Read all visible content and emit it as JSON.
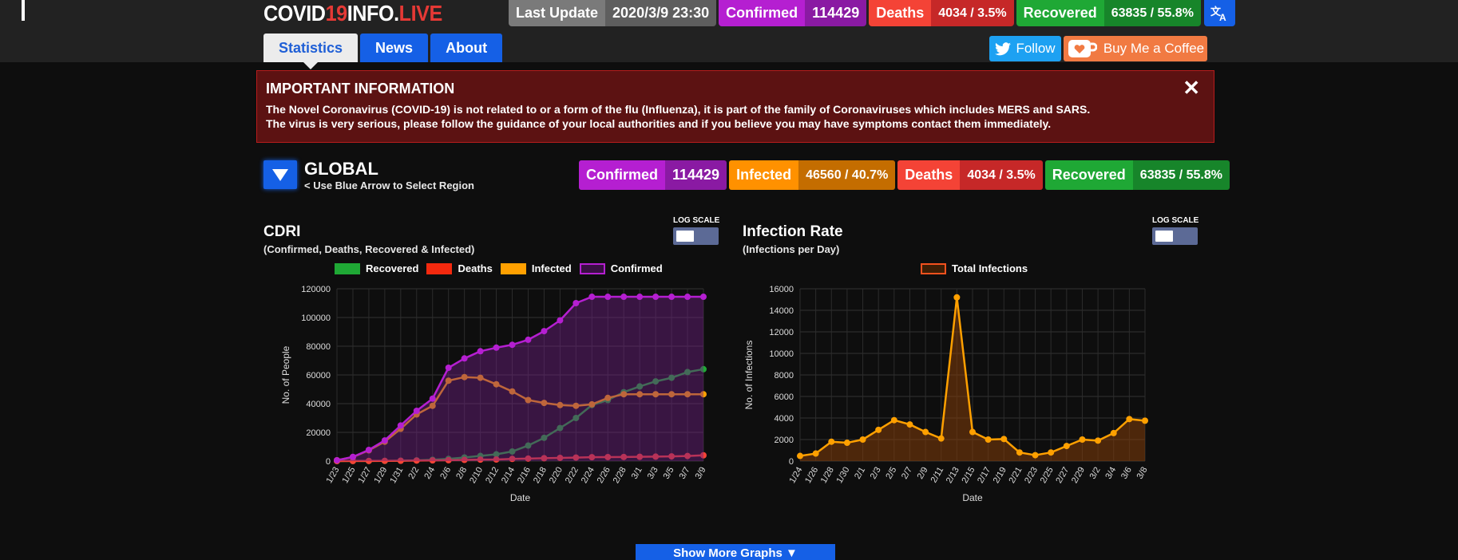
{
  "header": {
    "logo_part1": "COVID",
    "logo_part2": "19",
    "logo_part3": "INFO.",
    "logo_part4": "LIVE",
    "last_update_label": "Last Update",
    "last_update_value": "2020/3/9 23:30",
    "confirmed_label": "Confirmed",
    "confirmed_value": "114429",
    "deaths_label": "Deaths",
    "deaths_value": "4034 / 3.5%",
    "recovered_label": "Recovered",
    "recovered_value": "63835 / 55.8%",
    "translate_icon": "translate-icon"
  },
  "nav": {
    "tabs": [
      "Statistics",
      "News",
      "About"
    ],
    "follow_label": "Follow",
    "coffee_label": "Buy Me a Coffee"
  },
  "alert": {
    "title": "IMPORTANT INFORMATION",
    "line1": "The Novel Coronavirus (COVID-19) is not related to or a form of the flu (Influenza), it is part of the family of Coronaviruses which includes MERS and SARS.",
    "line2": "The virus is very serious, please follow the guidance of your local authorities and if you believe you may have symptoms contact them immediately.",
    "close": "✕"
  },
  "region": {
    "name": "GLOBAL",
    "hint": "< Use Blue Arrow to Select Region",
    "confirmed_label": "Confirmed",
    "confirmed_value": "114429",
    "infected_label": "Infected",
    "infected_value": "46560 / 40.7%",
    "deaths_label": "Deaths",
    "deaths_value": "4034 / 3.5%",
    "recovered_label": "Recovered",
    "recovered_value": "63835 / 55.8%"
  },
  "colors": {
    "confirmed": "#b51fd1",
    "confirmed_dark": "#8a1aa3",
    "infected": "#ff9100",
    "infected_dark": "#c46d00",
    "deaths": "#f44336",
    "deaths_dark": "#c62828",
    "recovered": "#1fa835",
    "recovered_dark": "#17852a",
    "last_update": "#7a7a7a",
    "last_update_dark": "#5e5e5e",
    "blue": "#1560e6"
  },
  "more_graphs_label": "Show More Graphs ▼",
  "chart_data": [
    {
      "type": "line",
      "title": "CDRI",
      "subtitle": "(Confirmed, Deaths, Recovered & Infected)",
      "log_scale_label": "LOG SCALE",
      "xlabel": "Date",
      "ylabel": "No. of People",
      "ylim": [
        0,
        120000
      ],
      "yticks": [
        0,
        20000,
        40000,
        60000,
        80000,
        100000,
        120000
      ],
      "x": [
        "1/23",
        "1/25",
        "1/27",
        "1/29",
        "1/31",
        "2/2",
        "2/4",
        "2/6",
        "2/8",
        "2/10",
        "2/12",
        "2/14",
        "2/16",
        "2/18",
        "2/20",
        "2/22",
        "2/24",
        "2/26",
        "2/28",
        "3/1",
        "3/3",
        "3/5",
        "3/7",
        "3/9"
      ],
      "legend": [
        "Recovered",
        "Deaths",
        "Infected",
        "Confirmed"
      ],
      "series": [
        {
          "name": "Recovered",
          "color": "#1fa835",
          "values": [
            30,
            60,
            100,
            140,
            260,
            500,
            900,
            1500,
            2500,
            3600,
            4700,
            6700,
            10800,
            16200,
            23000,
            30000,
            39000,
            42500,
            48000,
            52000,
            55500,
            58000,
            62000,
            64000
          ]
        },
        {
          "name": "Deaths",
          "color": "#f44336",
          "values": [
            20,
            60,
            80,
            170,
            210,
            360,
            480,
            630,
            810,
            1010,
            1110,
            1520,
            1770,
            2010,
            2240,
            2460,
            2700,
            2790,
            2870,
            2990,
            3110,
            3280,
            3560,
            4034
          ]
        },
        {
          "name": "Infected",
          "color": "#ffa000",
          "values": [
            550,
            2800,
            7500,
            13500,
            22500,
            32500,
            38500,
            56000,
            58500,
            58000,
            53500,
            48500,
            42500,
            40500,
            39000,
            38500,
            39500,
            44000,
            46560,
            46560,
            46560,
            46560,
            46560,
            46560
          ]
        },
        {
          "name": "Confirmed",
          "color": "#b51fd1",
          "values": [
            580,
            2900,
            7800,
            14400,
            24800,
            35000,
            43500,
            65000,
            71500,
            76500,
            79000,
            81000,
            84500,
            90500,
            98000,
            110000,
            114429,
            114429,
            114429,
            114429,
            114429,
            114429,
            114429,
            114429
          ]
        }
      ]
    },
    {
      "type": "line",
      "title": "Infection Rate",
      "subtitle": "(Infections per Day)",
      "log_scale_label": "LOG SCALE",
      "xlabel": "Date",
      "ylabel": "No. of Infections",
      "ylim": [
        0,
        16000
      ],
      "yticks": [
        0,
        2000,
        4000,
        6000,
        8000,
        10000,
        12000,
        14000,
        16000
      ],
      "x": [
        "1/24",
        "1/26",
        "1/28",
        "1/30",
        "2/1",
        "2/3",
        "2/5",
        "2/7",
        "2/9",
        "2/11",
        "2/13",
        "2/15",
        "2/17",
        "2/19",
        "2/21",
        "2/23",
        "2/25",
        "2/27",
        "2/29",
        "3/2",
        "3/4",
        "3/6",
        "3/8"
      ],
      "legend": [
        "Total Infections"
      ],
      "series": [
        {
          "name": "Total Infections",
          "color": "#ffa000",
          "values": [
            480,
            700,
            1800,
            1700,
            2000,
            2900,
            3800,
            3400,
            2700,
            2100,
            15200,
            2700,
            2000,
            2050,
            800,
            550,
            800,
            1400,
            2000,
            1900,
            2600,
            3900,
            3750
          ]
        }
      ]
    }
  ]
}
